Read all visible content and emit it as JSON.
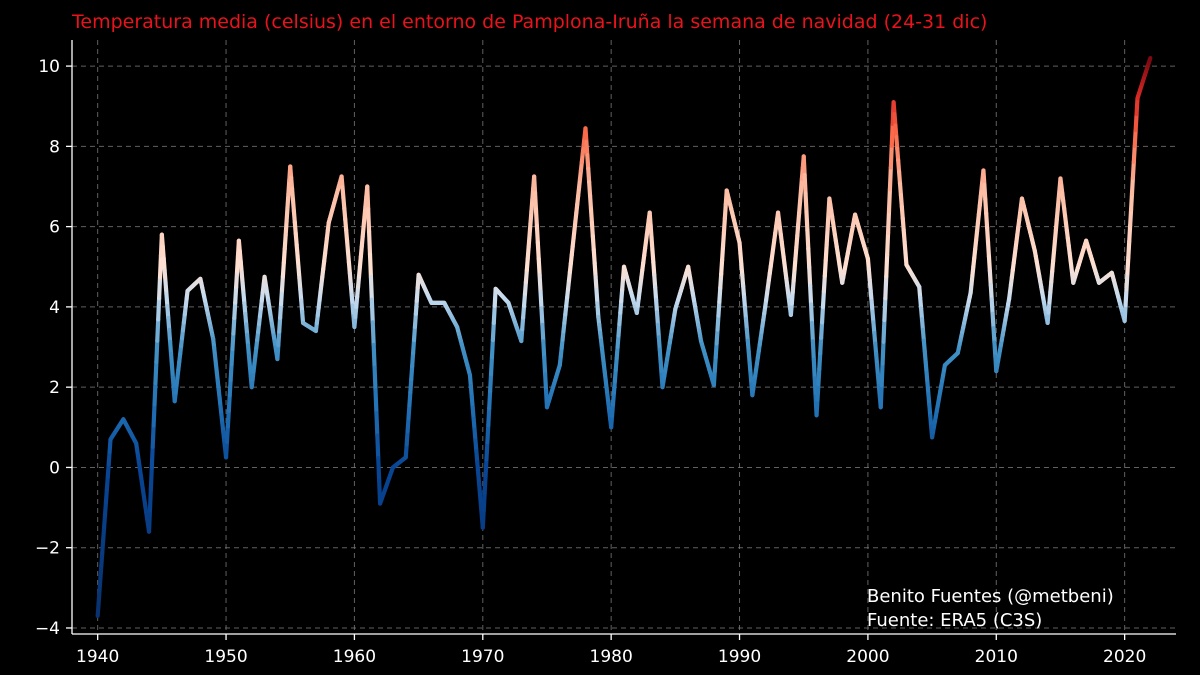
{
  "chart_data": {
    "type": "line",
    "title": "Temperatura media (celsius) en el entorno de Pamplona-Iruña la semana de navidad (24-31 dic)",
    "xlabel": "",
    "ylabel": "",
    "xlim": [
      1938.0,
      2024.0
    ],
    "ylim": [
      -4.15,
      10.65
    ],
    "xticks": [
      1940,
      1950,
      1960,
      1970,
      1980,
      1990,
      2000,
      2010,
      2020
    ],
    "yticks": [
      -4,
      -2,
      0,
      2,
      4,
      6,
      8,
      10
    ],
    "ytick_labels": [
      "−4",
      "−2",
      "0",
      "2",
      "4",
      "6",
      "8",
      "10"
    ],
    "grid": true,
    "color_scale": "blue-to-red by temperature",
    "x": [
      1940,
      1941,
      1942,
      1943,
      1944,
      1945,
      1946,
      1947,
      1948,
      1949,
      1950,
      1951,
      1952,
      1953,
      1954,
      1955,
      1956,
      1957,
      1958,
      1959,
      1960,
      1961,
      1962,
      1963,
      1964,
      1965,
      1966,
      1967,
      1968,
      1969,
      1970,
      1971,
      1972,
      1973,
      1974,
      1975,
      1976,
      1977,
      1978,
      1979,
      1980,
      1981,
      1982,
      1983,
      1984,
      1985,
      1986,
      1987,
      1988,
      1989,
      1990,
      1991,
      1992,
      1993,
      1994,
      1995,
      1996,
      1997,
      1998,
      1999,
      2000,
      2001,
      2002,
      2003,
      2004,
      2005,
      2006,
      2007,
      2008,
      2009,
      2010,
      2011,
      2012,
      2013,
      2014,
      2015,
      2016,
      2017,
      2018,
      2019,
      2020,
      2021,
      2022
    ],
    "values": [
      -3.7,
      0.7,
      1.2,
      0.6,
      -1.6,
      5.8,
      1.65,
      4.4,
      4.7,
      3.2,
      0.25,
      5.65,
      2.0,
      4.75,
      2.7,
      7.5,
      3.6,
      3.4,
      6.1,
      7.25,
      3.5,
      7.0,
      -0.9,
      0.0,
      0.25,
      4.8,
      4.1,
      4.1,
      3.5,
      2.3,
      -1.5,
      4.45,
      4.1,
      3.15,
      7.25,
      1.5,
      2.55,
      5.5,
      8.45,
      3.75,
      1.0,
      5.0,
      3.85,
      6.35,
      2.0,
      3.95,
      5.0,
      3.15,
      2.05,
      6.9,
      5.6,
      1.8,
      4.0,
      6.35,
      3.8,
      7.75,
      1.3,
      6.7,
      4.6,
      6.3,
      5.2,
      1.5,
      9.1,
      5.05,
      4.5,
      0.75,
      2.55,
      2.85,
      4.35,
      7.4,
      2.4,
      4.2,
      6.7,
      5.4,
      3.6,
      7.2,
      4.6,
      5.65,
      4.6,
      4.85,
      3.65,
      9.2,
      10.2
    ]
  },
  "credit": {
    "author": "Benito Fuentes (@metbeni)",
    "source": "Fuente: ERA5 (C3S)"
  }
}
